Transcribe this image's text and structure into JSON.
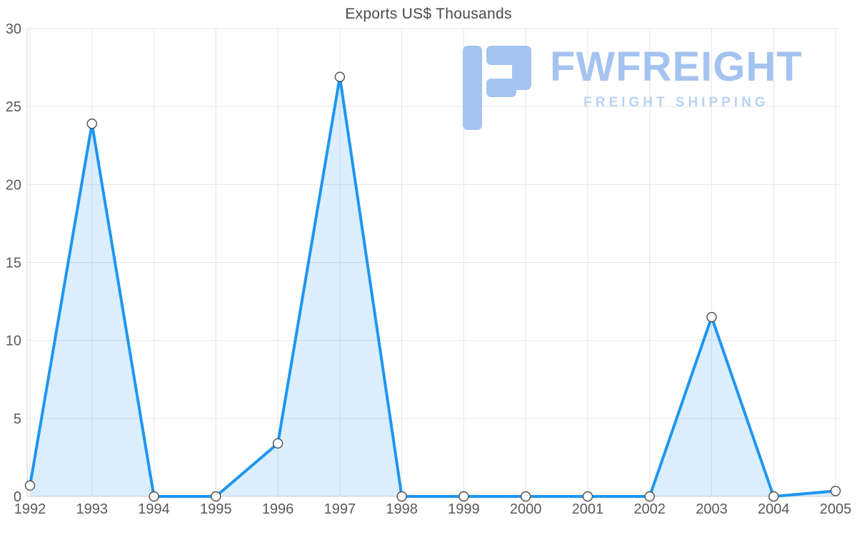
{
  "title": "Exports US$ Thousands",
  "logo": {
    "name": "FWFREIGHT",
    "tagline": "FREIGHT SHIPPING"
  },
  "colors": {
    "brand-blue": "#a5c3f0",
    "brand-blue-light": "#b9d3f4",
    "line-blue": "#1e96f0",
    "grid-color": "#e6e6e6",
    "axis-color": "#d4d4d4",
    "tick-text": "#595959",
    "title-text": "#4a4a4a"
  },
  "chart_data": {
    "type": "area",
    "title": "Exports US$ Thousands",
    "categories": [
      "1992",
      "1993",
      "1994",
      "1995",
      "1996",
      "1997",
      "1998",
      "1999",
      "2000",
      "2001",
      "2002",
      "2003",
      "2004",
      "2005"
    ],
    "values": [
      0.7,
      23.9,
      0,
      0,
      3.4,
      26.9,
      0,
      0,
      0,
      0,
      0,
      11.5,
      0,
      0.35
    ],
    "xlabel": "",
    "ylabel": "",
    "ylim": [
      0,
      30
    ],
    "yticks": [
      0,
      5,
      10,
      15,
      20,
      25,
      30
    ],
    "grid": true,
    "legend": "none",
    "line_color": "#1e96f0",
    "area_fill": "rgba(30,150,240,0.16)",
    "marker_fill": "#ffffff",
    "marker_stroke": "#4d4d4d"
  }
}
